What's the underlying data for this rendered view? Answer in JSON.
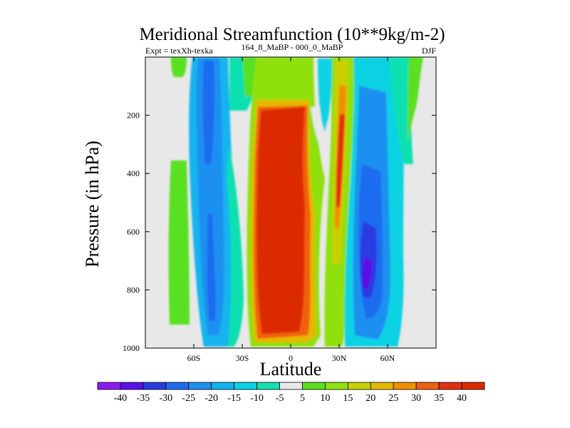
{
  "chart_data": {
    "type": "filled-contour",
    "title": "Meridional Streamfunction (10**9kg/m-2)",
    "left_string": "Expt = texXh-texka",
    "center_string": "164_8_MaBP - 000_0_MaBP",
    "right_string": "DJF",
    "xlabel": "Latitude",
    "ylabel": "Pressure (in hPa)",
    "xlim": [
      -90,
      90
    ],
    "ylim": [
      1000,
      0
    ],
    "x_ticks": [
      {
        "value": -60,
        "label": "60S"
      },
      {
        "value": -30,
        "label": "30S"
      },
      {
        "value": 0,
        "label": "0"
      },
      {
        "value": 30,
        "label": "30N"
      },
      {
        "value": 60,
        "label": "60N"
      }
    ],
    "y_ticks": [
      {
        "value": 200,
        "label": "200"
      },
      {
        "value": 400,
        "label": "400"
      },
      {
        "value": 600,
        "label": "600"
      },
      {
        "value": 800,
        "label": "800"
      },
      {
        "value": 1000,
        "label": "1000"
      }
    ],
    "colorbar": {
      "labels": [
        "-40",
        "-35",
        "-30",
        "-25",
        "-20",
        "-15",
        "-10",
        "-5",
        "5",
        "10",
        "15",
        "20",
        "25",
        "30",
        "35",
        "40"
      ],
      "colors": [
        "#8a1cf0",
        "#5a10e8",
        "#2a3ae0",
        "#1f6cf0",
        "#1e90f0",
        "#13b4ee",
        "#0ad2e4",
        "#10e0b0",
        "#e8e8e8",
        "#5ae020",
        "#90e010",
        "#c8d000",
        "#e4b800",
        "#f09000",
        "#f06010",
        "#e03010",
        "#dc2a00"
      ]
    },
    "features": [
      {
        "name": "Tropical positive cell",
        "lat_range": [
          -18,
          12
        ],
        "p_range": [
          160,
          990
        ],
        "peak": 40
      },
      {
        "name": "SH negative cell",
        "lat_range": [
          -75,
          -20
        ],
        "p_range": [
          0,
          990
        ],
        "peak": -35
      },
      {
        "name": "NH negative cell",
        "lat_range": [
          30,
          68
        ],
        "p_range": [
          0,
          990
        ],
        "peak": -40
      },
      {
        "name": "Subtropical positive band",
        "lat_range": [
          22,
          36
        ],
        "p_range": [
          0,
          1000
        ],
        "peak": 35
      }
    ]
  }
}
